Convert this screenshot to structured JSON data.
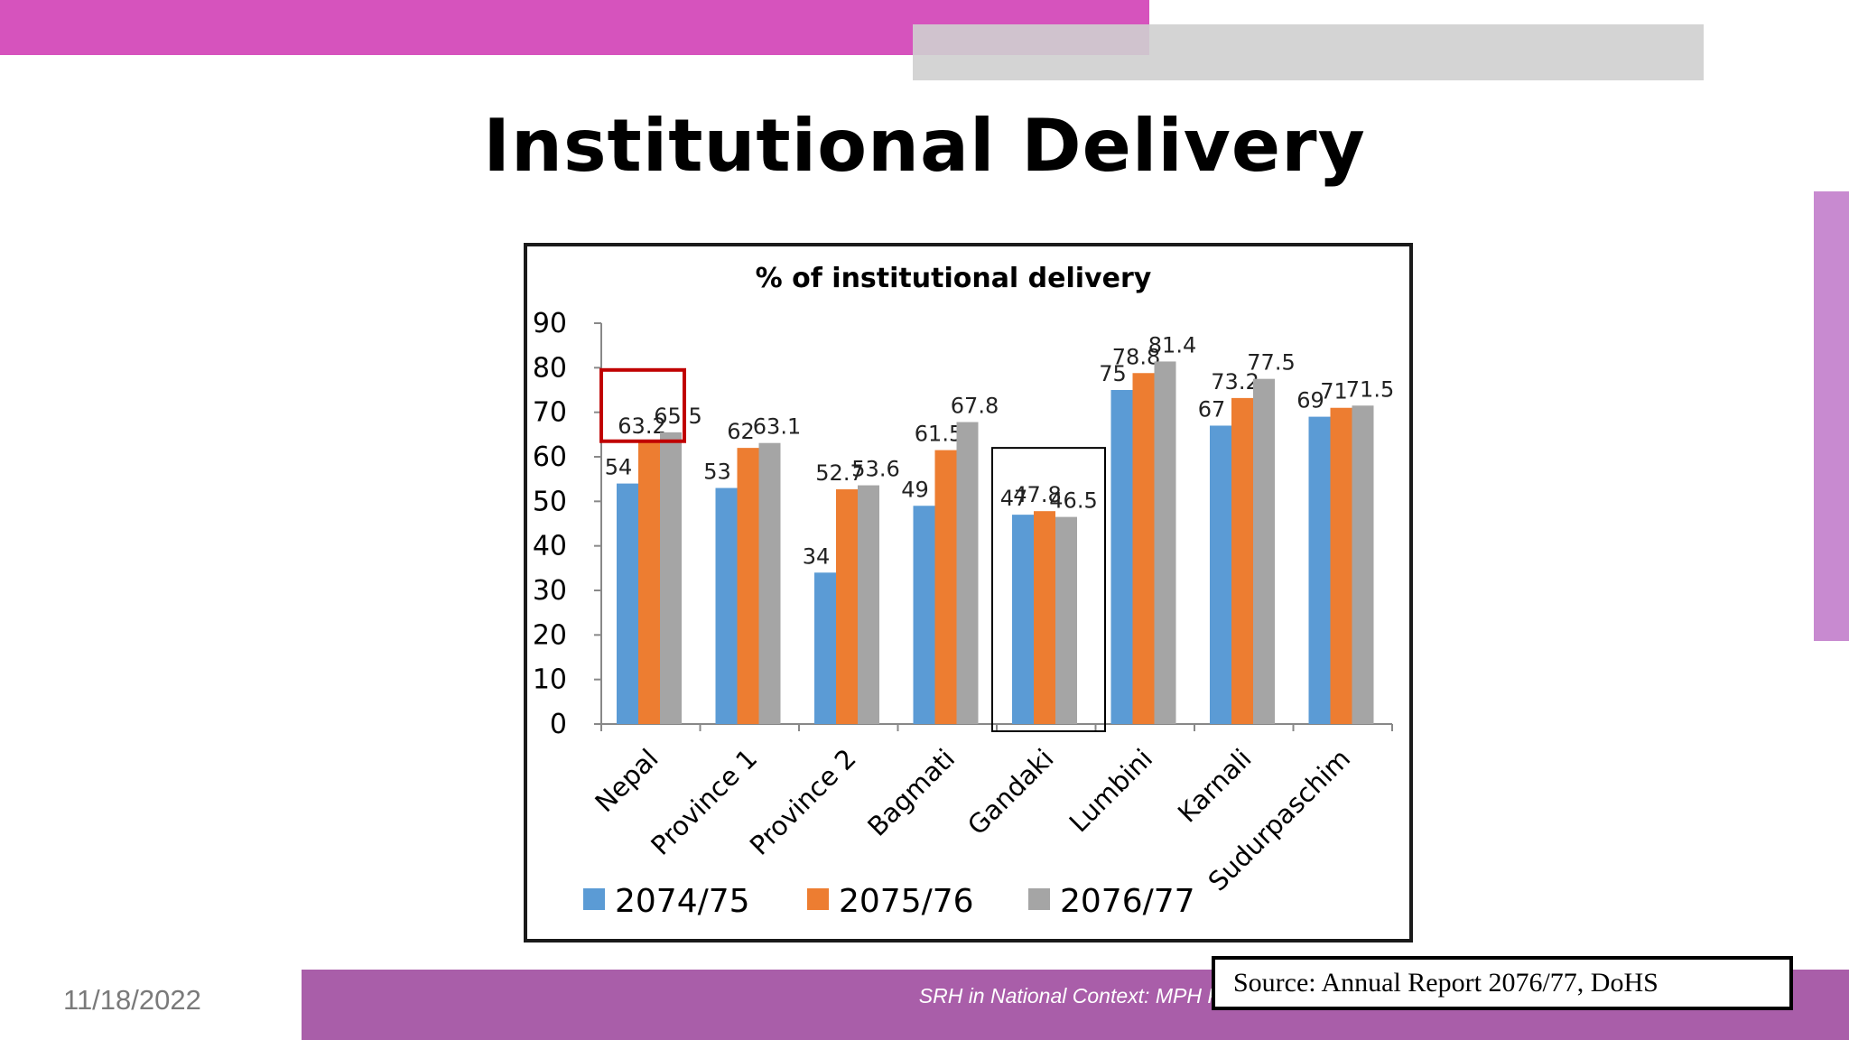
{
  "slide": {
    "title": "Institutional Delivery",
    "date": "11/18/2022",
    "footer": "SRH in National Context: MPH PAHS",
    "source": "Source: Annual Report 2076/77, DoHS",
    "colors": {
      "magenta_bar": "#d653bd",
      "gray_bar": "#cfcfcf",
      "side_bar": "#c88ad0",
      "footer_band": "#a95ea9"
    }
  },
  "chart_data": {
    "type": "bar",
    "title": "% of institutional delivery",
    "categories": [
      "Nepal",
      "Province 1",
      "Province 2",
      "Bagmati",
      "Gandaki",
      "Lumbini",
      "Karnali",
      "Sudurpaschim"
    ],
    "series": [
      {
        "name": "2074/75",
        "color": "#5b9bd5",
        "values": [
          54,
          53,
          34,
          49,
          47,
          75,
          67,
          69
        ]
      },
      {
        "name": "2075/76",
        "color": "#ed7d31",
        "values": [
          63.2,
          62,
          52.7,
          61.5,
          47.8,
          78.8,
          73.2,
          71
        ]
      },
      {
        "name": "2076/77",
        "color": "#a5a5a5",
        "values": [
          65.5,
          63.1,
          53.6,
          67.8,
          46.5,
          81.4,
          77.5,
          71.5
        ]
      }
    ],
    "yticks": [
      "0",
      "10",
      "20",
      "30",
      "40",
      "50",
      "60",
      "70",
      "80",
      "90"
    ],
    "ylim": [
      0,
      90
    ],
    "legend_position": "bottom",
    "grid": false,
    "highlights": [
      {
        "category": "Nepal",
        "series": "2075/76-2076/77 labels",
        "color": "#c00000"
      },
      {
        "category": "Gandaki",
        "color": "#000000"
      }
    ]
  }
}
